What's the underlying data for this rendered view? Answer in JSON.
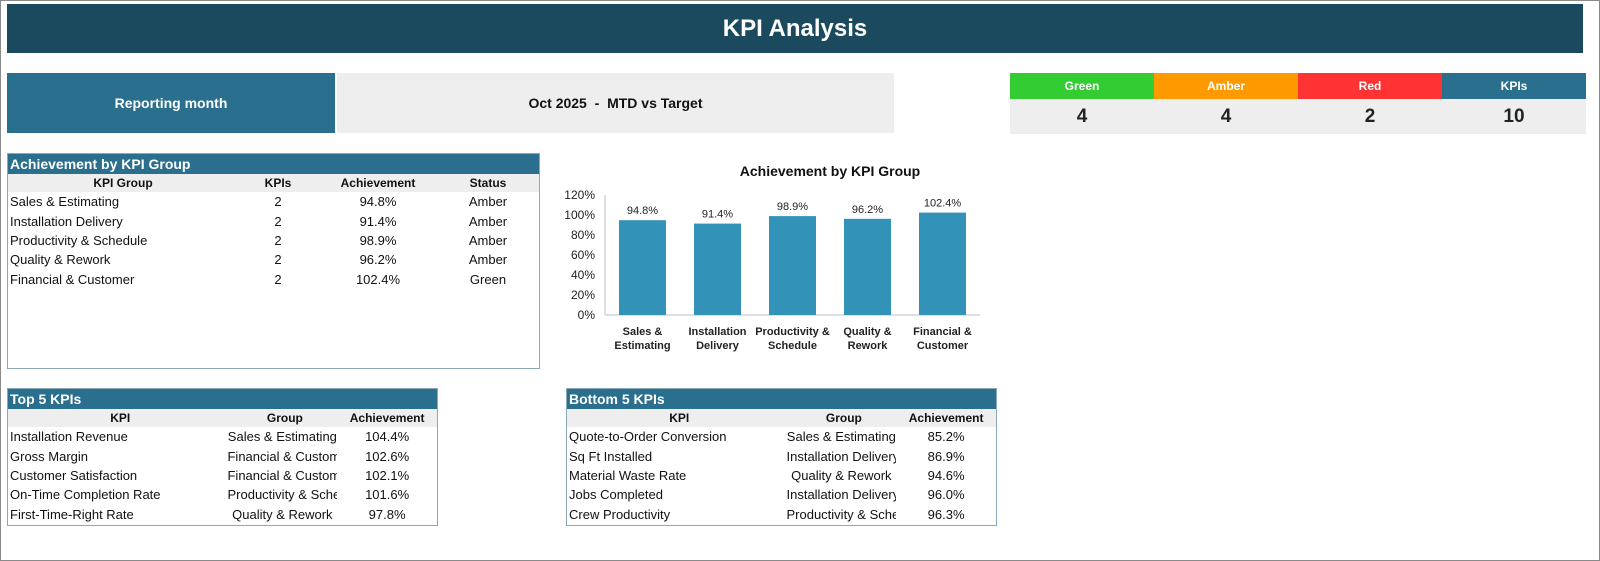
{
  "header": {
    "title": "KPI Analysis"
  },
  "reporting": {
    "label": "Reporting month",
    "month": "Oct 2025",
    "separator": "  -  ",
    "mode": "MTD vs Target"
  },
  "rag_summary": [
    {
      "label": "Green",
      "value": "4",
      "color": "#33cc33"
    },
    {
      "label": "Amber",
      "value": "4",
      "color": "#ff9900"
    },
    {
      "label": "Red",
      "value": "2",
      "color": "#ff3333"
    },
    {
      "label": "KPIs",
      "value": "10",
      "color": "#2a6f8e"
    }
  ],
  "group_table": {
    "title": "Achievement by KPI Group",
    "columns": [
      "KPI Group",
      "KPIs",
      "Achievement",
      "Status"
    ],
    "rows": [
      [
        "Sales & Estimating",
        "2",
        "94.8%",
        "Amber"
      ],
      [
        "Installation Delivery",
        "2",
        "91.4%",
        "Amber"
      ],
      [
        "Productivity & Schedule",
        "2",
        "98.9%",
        "Amber"
      ],
      [
        "Quality & Rework",
        "2",
        "96.2%",
        "Amber"
      ],
      [
        "Financial & Customer",
        "2",
        "102.4%",
        "Green"
      ]
    ]
  },
  "chart_data": {
    "type": "bar",
    "title": "Achievement by KPI Group",
    "categories": [
      [
        "Sales &",
        "Estimating"
      ],
      [
        "Installation",
        "Delivery"
      ],
      [
        "Productivity &",
        "Schedule"
      ],
      [
        "Quality &",
        "Rework"
      ],
      [
        "Financial &",
        "Customer"
      ]
    ],
    "values": [
      94.8,
      91.4,
      98.9,
      96.2,
      102.4
    ],
    "data_labels": [
      "94.8%",
      "91.4%",
      "98.9%",
      "96.2%",
      "102.4%"
    ],
    "ylim": [
      0,
      120
    ],
    "yticks": [
      "0%",
      "20%",
      "40%",
      "60%",
      "80%",
      "100%",
      "120%"
    ],
    "bar_color": "#3392b8",
    "grid": false
  },
  "top5": {
    "title": "Top 5 KPIs",
    "columns": [
      "KPI",
      "Group",
      "Achievement"
    ],
    "rows": [
      [
        "Installation Revenue",
        "Sales & Estimating",
        "104.4%"
      ],
      [
        "Gross Margin",
        "Financial & Customer",
        "102.6%"
      ],
      [
        "Customer Satisfaction",
        "Financial & Customer",
        "102.1%"
      ],
      [
        "On-Time Completion Rate",
        "Productivity & Schedule",
        "101.6%"
      ],
      [
        "First-Time-Right Rate",
        "Quality & Rework",
        "97.8%"
      ]
    ]
  },
  "bottom5": {
    "title": "Bottom 5 KPIs",
    "columns": [
      "KPI",
      "Group",
      "Achievement"
    ],
    "rows": [
      [
        "Quote-to-Order Conversion",
        "Sales & Estimating",
        "85.2%"
      ],
      [
        "Sq Ft Installed",
        "Installation Delivery",
        "86.9%"
      ],
      [
        "Material Waste Rate",
        "Quality & Rework",
        "94.6%"
      ],
      [
        "Jobs Completed",
        "Installation Delivery",
        "96.0%"
      ],
      [
        "Crew Productivity",
        "Productivity & Schedule",
        "96.3%"
      ]
    ]
  }
}
